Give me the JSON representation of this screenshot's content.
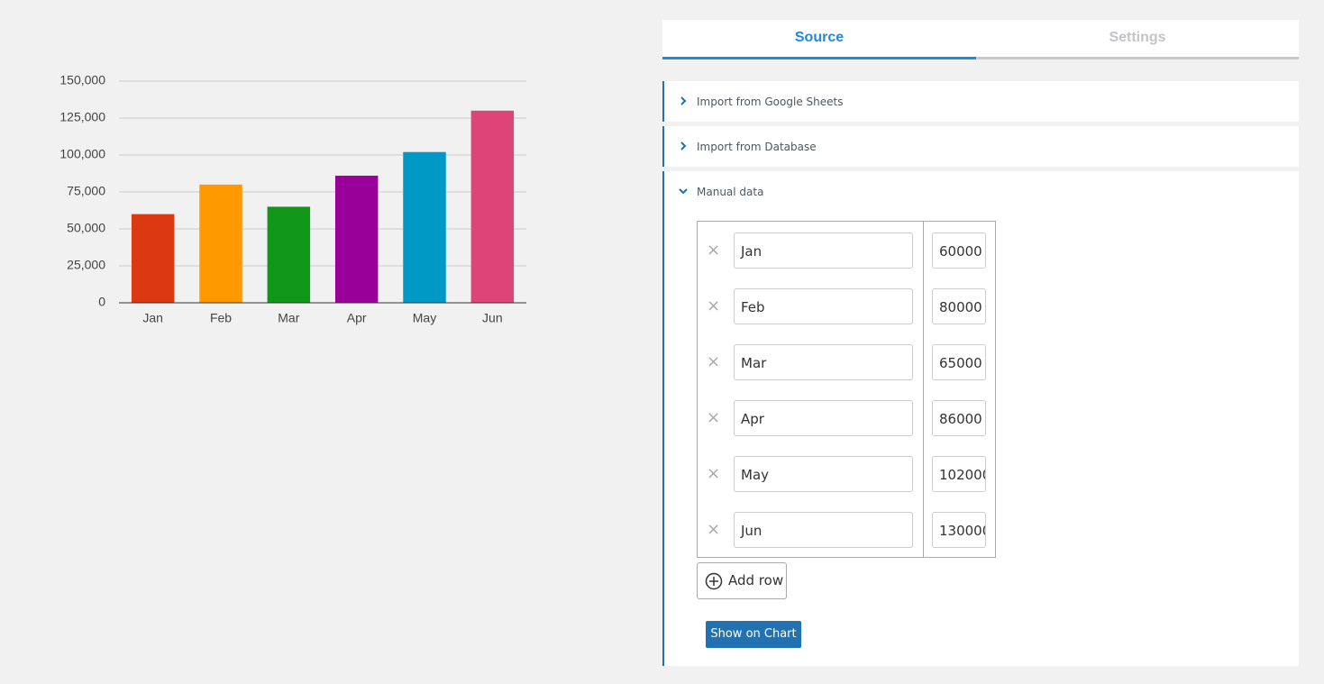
{
  "chart_data": {
    "type": "bar",
    "categories": [
      "Jan",
      "Feb",
      "Mar",
      "Apr",
      "May",
      "Jun"
    ],
    "values": [
      60000,
      80000,
      65000,
      86000,
      102000,
      130000
    ],
    "colors": [
      "#dc3912",
      "#ff9900",
      "#109618",
      "#990099",
      "#0099c6",
      "#dd4477"
    ],
    "ylim": [
      0,
      150000
    ],
    "yticks": [
      0,
      {
        "value": 25000,
        "label": "25,000"
      },
      {
        "value": 50000,
        "label": "50,000"
      },
      {
        "value": 75000,
        "label": "75,000"
      },
      {
        "value": 100000,
        "label": "100,000"
      },
      {
        "value": 125000,
        "label": "125,000"
      },
      {
        "value": 150000,
        "label": "150,000"
      }
    ],
    "grid": true
  },
  "tabs": [
    "Source",
    "Settings"
  ],
  "sections": [
    "Import from Google Sheets",
    "Import from Database",
    "Manual data"
  ],
  "buttons": {
    "add_row": "Add row",
    "show_on_chart": "Show on Chart"
  }
}
